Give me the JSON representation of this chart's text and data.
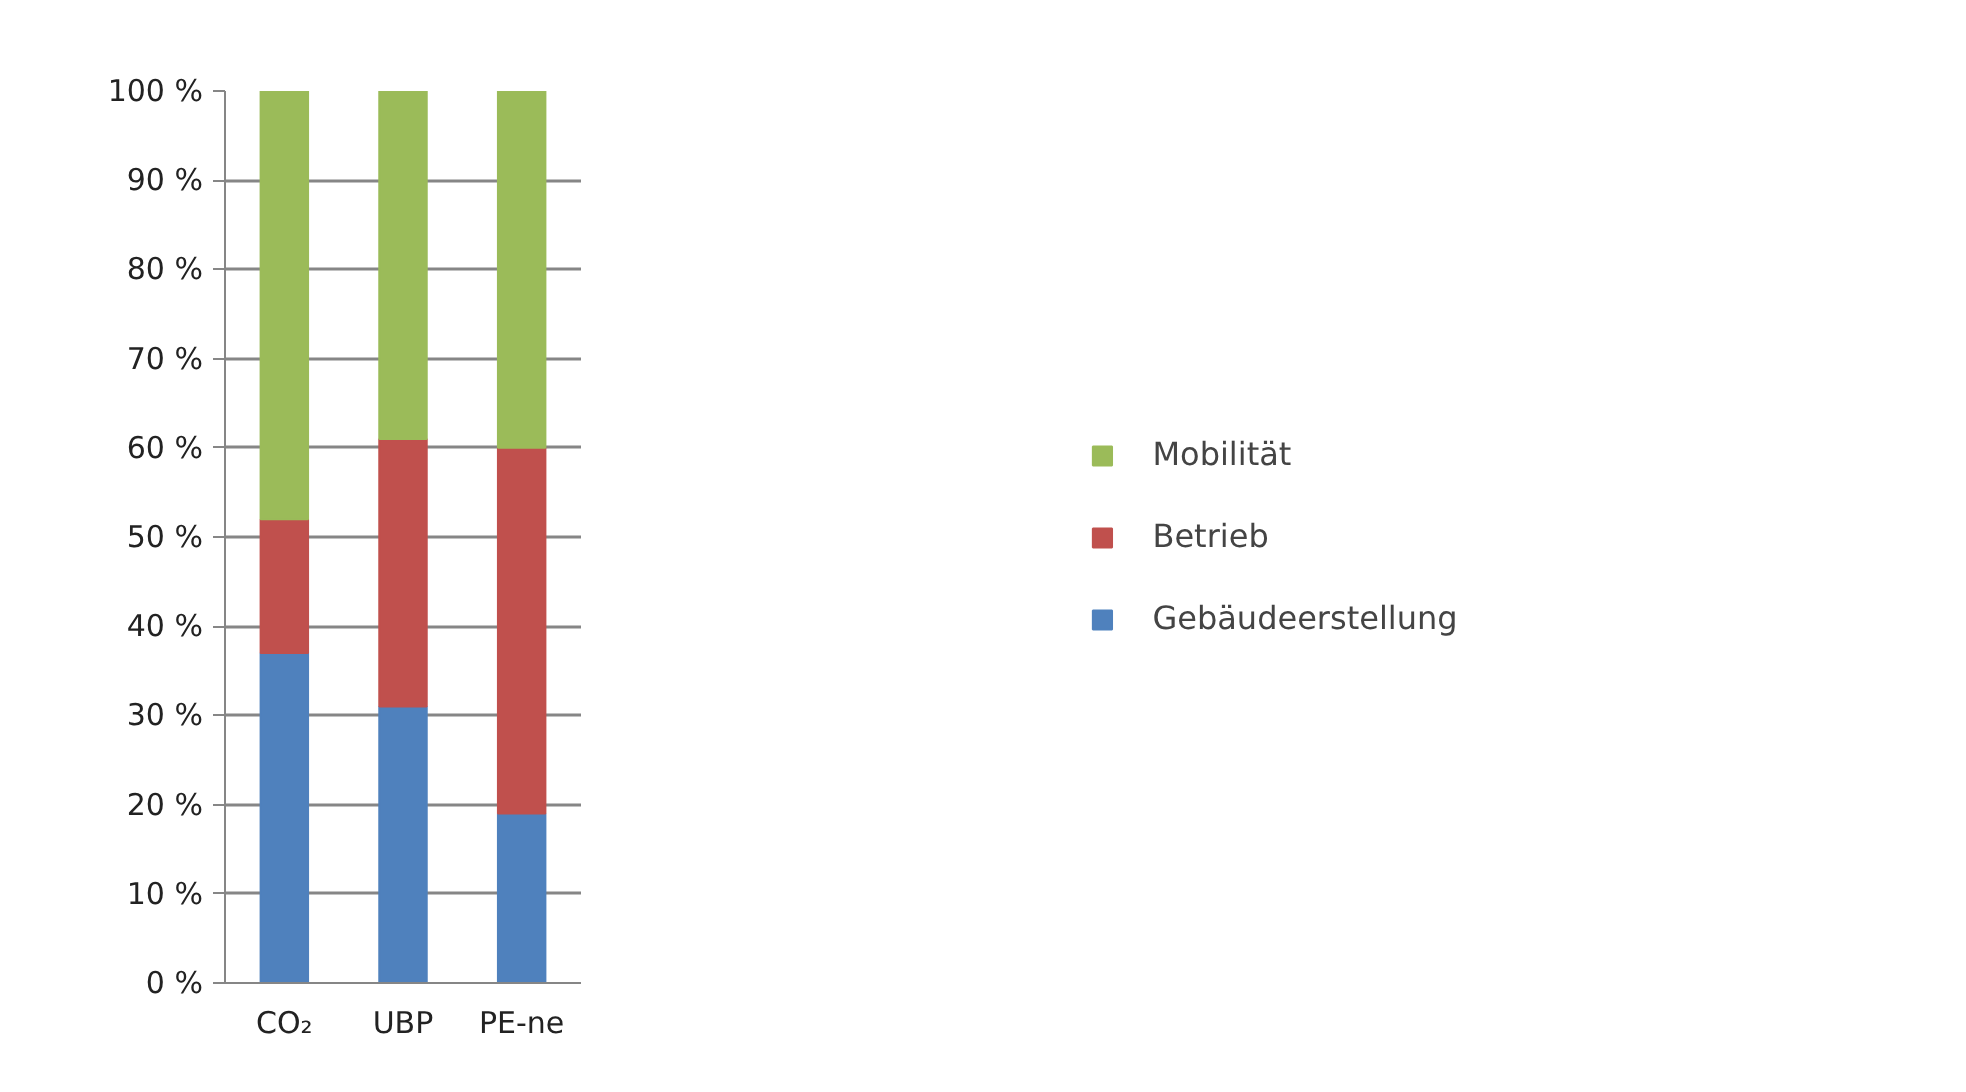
{
  "chart_data": {
    "type": "bar",
    "stacked": true,
    "categories": [
      "CO₂",
      "UBP",
      "PE-ne"
    ],
    "series": [
      {
        "name": "Gebäudeerstellung",
        "color": "#4f81bd",
        "values": [
          37,
          31,
          19
        ]
      },
      {
        "name": "Betrieb",
        "color": "#c0504d",
        "values": [
          15,
          30,
          41
        ]
      },
      {
        "name": "Mobilität",
        "color": "#9bbb59",
        "values": [
          48,
          39,
          40
        ]
      }
    ],
    "ylim": [
      0,
      100
    ],
    "yticks": [
      {
        "value": 0,
        "label": "0 %"
      },
      {
        "value": 10,
        "label": "10 %"
      },
      {
        "value": 20,
        "label": "20 %"
      },
      {
        "value": 30,
        "label": "30 %"
      },
      {
        "value": 40,
        "label": "40 %"
      },
      {
        "value": 50,
        "label": "50 %"
      },
      {
        "value": 60,
        "label": "60 %"
      },
      {
        "value": 70,
        "label": "70 %"
      },
      {
        "value": 80,
        "label": "80 %"
      },
      {
        "value": 90,
        "label": "90 %"
      },
      {
        "value": 100,
        "label": "100 %"
      }
    ],
    "grid": "y",
    "legend": "right"
  }
}
